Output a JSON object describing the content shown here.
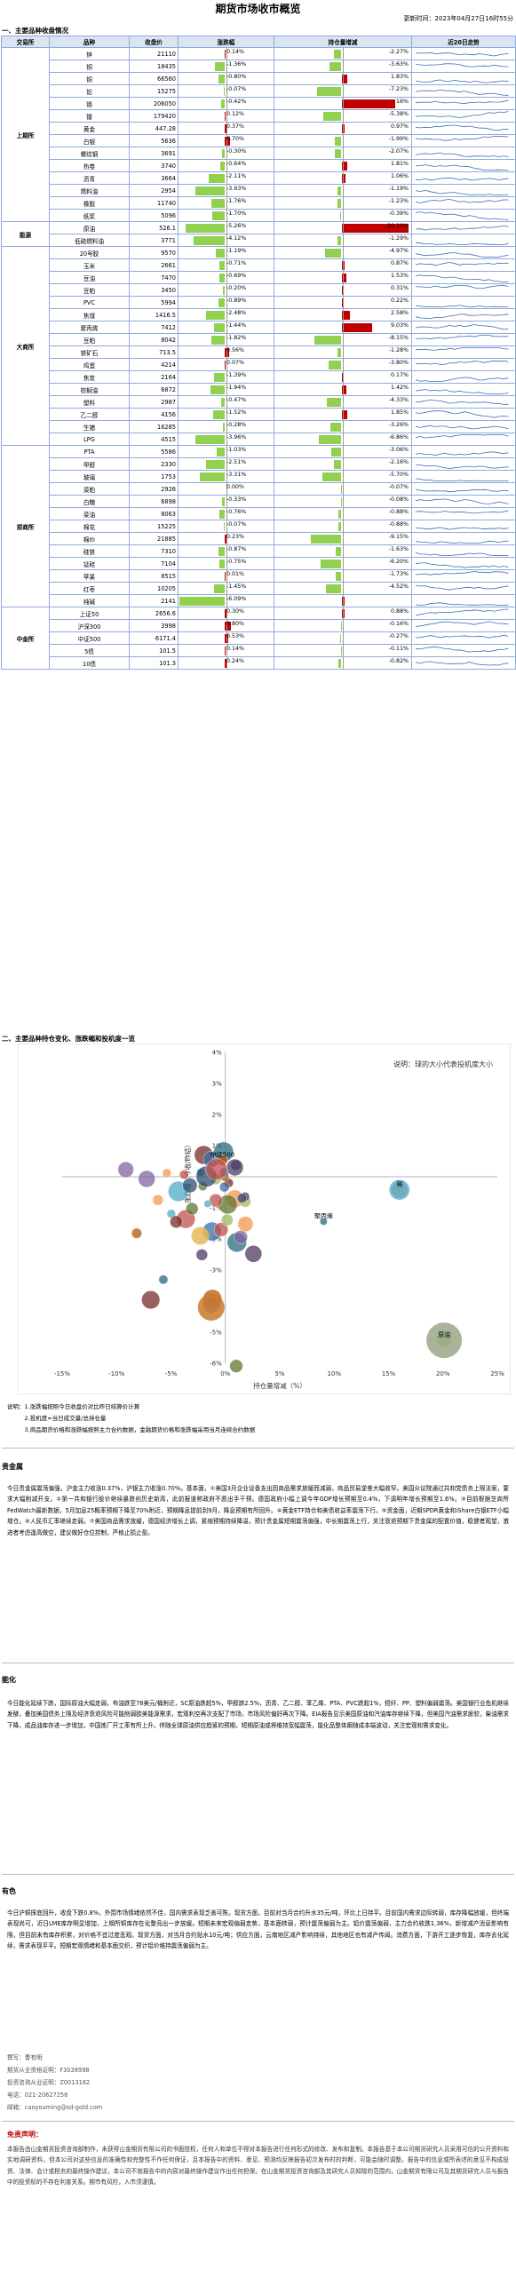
{
  "title": "期货市场收市概览",
  "update": "更新时间：2023年04月27日16时55分",
  "sec1": "一、主要品种收盘情况",
  "headers": [
    "交易所",
    "品种",
    "收盘价",
    "涨跌幅",
    "持仓量增减",
    "近20日走势"
  ],
  "rows": [
    {
      "ex": "上期所",
      "name": "锌",
      "price": "21110",
      "chg": 0.14,
      "chgs": "0.14%",
      "oi": -2.27,
      "ois": "-2.27%"
    },
    {
      "ex": "",
      "name": "铜",
      "price": "18435",
      "chg": -1.36,
      "chgs": "-1.36%",
      "oi": -3.63,
      "ois": "-3.63%"
    },
    {
      "ex": "",
      "name": "铜",
      "price": "66560",
      "chg": -0.8,
      "chgs": "-0.80%",
      "oi": 1.83,
      "ois": "1.83%"
    },
    {
      "ex": "",
      "name": "铅",
      "price": "15275",
      "chg": -0.07,
      "chgs": "-0.07%",
      "oi": -7.23,
      "ois": "-7.23%"
    },
    {
      "ex": "",
      "name": "锡",
      "price": "206050",
      "chg": -0.42,
      "chgs": "-0.42%",
      "oi": 16,
      "ois": "16%"
    },
    {
      "ex": "",
      "name": "镍",
      "price": "179420",
      "chg": 0.12,
      "chgs": "0.12%",
      "oi": -5.38,
      "ois": "-5.38%"
    },
    {
      "ex": "",
      "name": "黄金",
      "price": "447.28",
      "chg": 0.37,
      "chgs": "0.37%",
      "oi": 0.97,
      "ois": "0.97%"
    },
    {
      "ex": "",
      "name": "白银",
      "price": "5636",
      "chg": 0.7,
      "chgs": "0.70%",
      "oi": -1.99,
      "ois": "-1.99%"
    },
    {
      "ex": "",
      "name": "螺纹钢",
      "price": "3691",
      "chg": -0.3,
      "chgs": "-0.30%",
      "oi": -2.07,
      "ois": "-2.07%"
    },
    {
      "ex": "",
      "name": "热卷",
      "price": "3740",
      "chg": -0.64,
      "chgs": "-0.64%",
      "oi": 1.81,
      "ois": "1.81%"
    },
    {
      "ex": "",
      "name": "沥青",
      "price": "3664",
      "chg": -2.11,
      "chgs": "-2.11%",
      "oi": 1.06,
      "ois": "1.06%"
    },
    {
      "ex": "",
      "name": "燃料油",
      "price": "2954",
      "chg": -3.93,
      "chgs": "-3.93%",
      "oi": -1.19,
      "ois": "-1.19%"
    },
    {
      "ex": "",
      "name": "橡胶",
      "price": "11740",
      "chg": -1.76,
      "chgs": "-1.76%",
      "oi": -1.23,
      "ois": "-1.23%"
    },
    {
      "ex": "",
      "name": "纸浆",
      "price": "5096",
      "chg": -1.7,
      "chgs": "-1.70%",
      "oi": -0.39,
      "ois": "-0.39%"
    },
    {
      "ex": "能源",
      "name": "原油",
      "price": "526.1",
      "chg": -5.26,
      "chgs": "-5.26%",
      "oi": 20.11,
      "ois": "20.11%"
    },
    {
      "ex": "",
      "name": "低硫燃料油",
      "price": "3771",
      "chg": -4.12,
      "chgs": "-4.12%",
      "oi": -1.29,
      "ois": "-1.29%"
    },
    {
      "ex": "大商所",
      "name": "20号胶",
      "price": "9570",
      "chg": -1.19,
      "chgs": "-1.19%",
      "oi": -4.97,
      "ois": "-4.97%"
    },
    {
      "ex": "",
      "name": "玉米",
      "price": "2661",
      "chg": -0.71,
      "chgs": "-0.71%",
      "oi": 0.87,
      "ois": "0.87%"
    },
    {
      "ex": "",
      "name": "豆油",
      "price": "7470",
      "chg": -0.69,
      "chgs": "-0.69%",
      "oi": 1.53,
      "ois": "1.53%"
    },
    {
      "ex": "",
      "name": "豆粕",
      "price": "3450",
      "chg": -0.2,
      "chgs": "-0.20%",
      "oi": 0.31,
      "ois": "0.31%"
    },
    {
      "ex": "",
      "name": "PVC",
      "price": "5994",
      "chg": -0.89,
      "chgs": "-0.89%",
      "oi": 0.22,
      "ois": "0.22%"
    },
    {
      "ex": "",
      "name": "焦煤",
      "price": "1416.5",
      "chg": -2.48,
      "chgs": "-2.48%",
      "oi": 2.58,
      "ois": "2.58%"
    },
    {
      "ex": "",
      "name": "聚丙烯",
      "price": "7412",
      "chg": -1.44,
      "chgs": "-1.44%",
      "oi": 9.03,
      "ois": "9.03%"
    },
    {
      "ex": "",
      "name": "豆粕",
      "price": "8042",
      "chg": -1.82,
      "chgs": "-1.82%",
      "oi": -8.15,
      "ois": "-8.15%"
    },
    {
      "ex": "",
      "name": "铁矿石",
      "price": "713.5",
      "chg": 0.56,
      "chgs": "0.56%",
      "oi": -1.28,
      "ois": "-1.28%"
    },
    {
      "ex": "",
      "name": "鸡蛋",
      "price": "4214",
      "chg": 0.07,
      "chgs": "0.07%",
      "oi": -3.8,
      "ois": "-3.80%"
    },
    {
      "ex": "",
      "name": "焦炭",
      "price": "2164",
      "chg": -1.39,
      "chgs": "-1.39%",
      "oi": 0.17,
      "ois": "0.17%"
    },
    {
      "ex": "",
      "name": "棕榈油",
      "price": "6872",
      "chg": -1.94,
      "chgs": "-1.94%",
      "oi": 1.42,
      "ois": "1.42%"
    },
    {
      "ex": "",
      "name": "塑料",
      "price": "2987",
      "chg": -0.47,
      "chgs": "-0.47%",
      "oi": -4.33,
      "ois": "-4.33%"
    },
    {
      "ex": "",
      "name": "乙二醇",
      "price": "4156",
      "chg": -1.52,
      "chgs": "-1.52%",
      "oi": 1.85,
      "ois": "1.85%"
    },
    {
      "ex": "",
      "name": "生猪",
      "price": "16285",
      "chg": -0.28,
      "chgs": "-0.28%",
      "oi": -3.26,
      "ois": "-3.26%"
    },
    {
      "ex": "",
      "name": "LPG",
      "price": "4515",
      "chg": -3.96,
      "chgs": "-3.96%",
      "oi": -6.86,
      "ois": "-6.86%"
    },
    {
      "ex": "郑商所",
      "name": "PTA",
      "price": "5586",
      "chg": -1.03,
      "chgs": "-1.03%",
      "oi": -3.06,
      "ois": "-3.06%"
    },
    {
      "ex": "",
      "name": "甲醇",
      "price": "2330",
      "chg": -2.51,
      "chgs": "-2.51%",
      "oi": -2.16,
      "ois": "-2.16%"
    },
    {
      "ex": "",
      "name": "玻璃",
      "price": "1753",
      "chg": -3.31,
      "chgs": "-3.31%",
      "oi": -5.7,
      "ois": "-5.70%"
    },
    {
      "ex": "",
      "name": "菜粕",
      "price": "2926",
      "chg": 0.0,
      "chgs": "0.00%",
      "oi": -0.07,
      "ois": "-0.07%"
    },
    {
      "ex": "",
      "name": "白糖",
      "price": "6898",
      "chg": -0.33,
      "chgs": "-0.33%",
      "oi": -0.08,
      "ois": "-0.08%"
    },
    {
      "ex": "",
      "name": "菜油",
      "price": "8063",
      "chg": -0.76,
      "chgs": "-0.76%",
      "oi": -0.88,
      "ois": "-0.88%"
    },
    {
      "ex": "",
      "name": "棉花",
      "price": "15225",
      "chg": -0.07,
      "chgs": "-0.07%",
      "oi": -0.88,
      "ois": "-0.88%"
    },
    {
      "ex": "",
      "name": "棉纱",
      "price": "21885",
      "chg": 0.23,
      "chgs": "0.23%",
      "oi": -9.15,
      "ois": "-9.15%"
    },
    {
      "ex": "",
      "name": "硅铁",
      "price": "7310",
      "chg": -0.87,
      "chgs": "-0.87%",
      "oi": -1.63,
      "ois": "-1.63%"
    },
    {
      "ex": "",
      "name": "锰硅",
      "price": "7104",
      "chg": -0.75,
      "chgs": "-0.75%",
      "oi": -6.2,
      "ois": "-6.20%"
    },
    {
      "ex": "",
      "name": "苹果",
      "price": "8515",
      "chg": 0.01,
      "chgs": "0.01%",
      "oi": -1.73,
      "ois": "-1.73%"
    },
    {
      "ex": "",
      "name": "红枣",
      "price": "10205",
      "chg": -1.45,
      "chgs": "-1.45%",
      "oi": -4.52,
      "ois": "-4.52%"
    },
    {
      "ex": "",
      "name": "纯碱",
      "price": "2141",
      "chg": -6.09,
      "chgs": "-6.09%",
      "oi": 1.0,
      "ois": ""
    },
    {
      "ex": "中金所",
      "name": "上证50",
      "price": "2656.6",
      "chg": 0.3,
      "chgs": "0.30%",
      "oi": 0.88,
      "ois": "0.88%"
    },
    {
      "ex": "",
      "name": "沪深300",
      "price": "3998",
      "chg": 0.8,
      "chgs": "0.80%",
      "oi": -0.16,
      "ois": "-0.16%"
    },
    {
      "ex": "",
      "name": "中证500",
      "price": "6171.4",
      "chg": 0.53,
      "chgs": "0.53%",
      "oi": -0.27,
      "ois": "-0.27%"
    },
    {
      "ex": "",
      "name": "5债",
      "price": "101.5",
      "chg": 0.14,
      "chgs": "0.14%",
      "oi": -0.11,
      "ois": "-0.11%"
    },
    {
      "ex": "",
      "name": "10债",
      "price": "101.3",
      "chg": 0.24,
      "chgs": "0.24%",
      "oi": -0.82,
      "ois": "-0.82%"
    }
  ],
  "sec2": "二、主要品种持仓变化、涨跌幅和投机度一览",
  "chart_data": {
    "type": "scatter",
    "title": "",
    "legend_note": "说明：球的大小代表投机度大小",
    "xlabel": "持仓量增减（%）",
    "ylabel": "涨跌幅（今收/昨结）",
    "xlim": [
      -15,
      25
    ],
    "ylim": [
      -6,
      4
    ],
    "xticks": [
      "-15%",
      "-10%",
      "-5%",
      "0%",
      "5%",
      "10%",
      "15%",
      "20%",
      "25%"
    ],
    "yticks": [
      "4%",
      "3%",
      "2%",
      "1%",
      "0%",
      "-1%",
      "-2%",
      "-3%",
      "-4%",
      "-5%",
      "-6%"
    ],
    "labels": [
      {
        "t": "中证500",
        "x": -0.27,
        "y": 0.53
      },
      {
        "t": "锡",
        "x": 16,
        "y": -0.42
      },
      {
        "t": "原油",
        "x": 20.11,
        "y": -5.26
      },
      {
        "t": "聚丙烯",
        "x": 9.03,
        "y": -1.44
      }
    ]
  },
  "notes": [
    "说明：1.涨跌幅按照今日收盘价对比昨日结算价计算",
    "　　　2.投机度=当日成交量/总持仓量",
    "　　　3.商品期货价格和涨跌幅按照主力合约数据，金融期货价格和涨跌幅采用当月连续合约数据"
  ],
  "h_metal": "贵金属",
  "p_metal": "今日贵金属震荡偏强，沪金主力收涨0.37%，沪银主力收涨0.70%。基本面，①美国3月企业设备支出因商品需求放缓而减弱，商品贸易逆差大幅收窄。美国众议院通过共和党债务上限法案，要求大幅削减开支。②第一共和银行股价继续暴跌创历史新高，此前报道称政府不愿出手干预。德国政府小幅上调今年GDP增长预期至0.4%，下调明年增长预期至1.6%。③目前根据芝商所FedWatch最新数据，5月加息25概率预期下降至70%附近，预期降息提前到9月，降息预期有所回升。④黄金ETF持仓和美债收益率震荡下行。⑤资金面，近期SPDR黄金和iShare白银ETF小幅增仓。⑥人民币汇率继续走弱。⑦美国商品需求放缓，德国经济增长上调，紧缩预期持续降温，预计贵金属短期震荡偏强，中长期震荡上行，关注衰退预期下贵金属的配置价值，稳健者观望，激进者考虑逢高做空，建议做好仓位控制，严格止损止盈。",
  "h_energy": "能化",
  "p_energy": "今日能化延续下跌，国际原油大幅走弱，布油跌至78美元/桶附近，SC原油跌超5%，甲醇跌2.5%，沥青、乙二醇、苯乙烯、PTA、PVC跌超1%，短纤、PP、塑料偏弱震荡。美国银行业危机继续发酵，叠加美国债务上限及经济衰退风险可能削弱欧美能源需求，宏观利空再次支配了市场，市场风险偏好再次下降。EIA报告显示美国原油和汽油库存继续下降，但美国汽油需求疲软，柴油需求下降，成品油库存进一步增加，中国炼厂开工率有所上升。伴随全球原油供应趋紧的预期，短期原油或将维持宽幅震荡，能化品整体跟随成本端波动，关注宏观和需求变化。",
  "h_ag": "有色",
  "p_ag": "今日沪铜探底回升，收盘下跌0.8%，外围市场情绪依然不佳，国内需求表现乏善可陈。现货方面，目前对当月合约升水35元/吨，环比上日持平。目前国内需求边际转弱，库存降幅放缓，但终端表现尚可，近日LME库存明显增加，上期所铜库存在化整竞出一步放缓。短期未来宏观偏弱走势，基本面转弱，预计震荡偏弱为主。铝价震荡偏弱，主力合约收跌1.36%，新增减产消息影响有限，但目前未有库存积累，对价格不宜过度悲观。现货方面，对当月合约贴水10元/吨；供应方面，云南地区减产影响持续，其他地区也有减产传闻。消费方面，下游开工逐步恢复，库存去化延续，需求表现平平。短期宏观情绪和基本面交织，预计铝价维持震荡偏弱为主。",
  "commentator": [
    "撰写：曹有明",
    "期货从业资格证明：F3038998",
    "投资咨询从业证明：Z0013162",
    "电话：021-20627258",
    "邮箱：caoyouming@sd-gold.com"
  ],
  "h_disc": "免责声明：",
  "p_disc": "本报告由山金期货投资咨询部制作，未获得山金期货有限公司的书面授权，任何人和单位不得对本报告进行任何形式的修改、发布和复制。本报告基于本公司期货研究人员采用可信的公开资料和实地调研资料，但本公司对这些信息的准确性和完整性不作任何保证，且本报告中的资料、意见、预测均反映报告初次发布时的判断，可能会随时调整。报告中的信息或所表述的意见不构成投资、法律、会计或税务的最终操作建议，本公司不就报告中的内容对最终操作建议作出任何担保。在山金期货投资咨询部及其研究人员知晓的范围内，山金期货有限公司及其期货研究人员与报告中的投资标的不存在利害关系。期市有风险，入市须谨慎。"
}
